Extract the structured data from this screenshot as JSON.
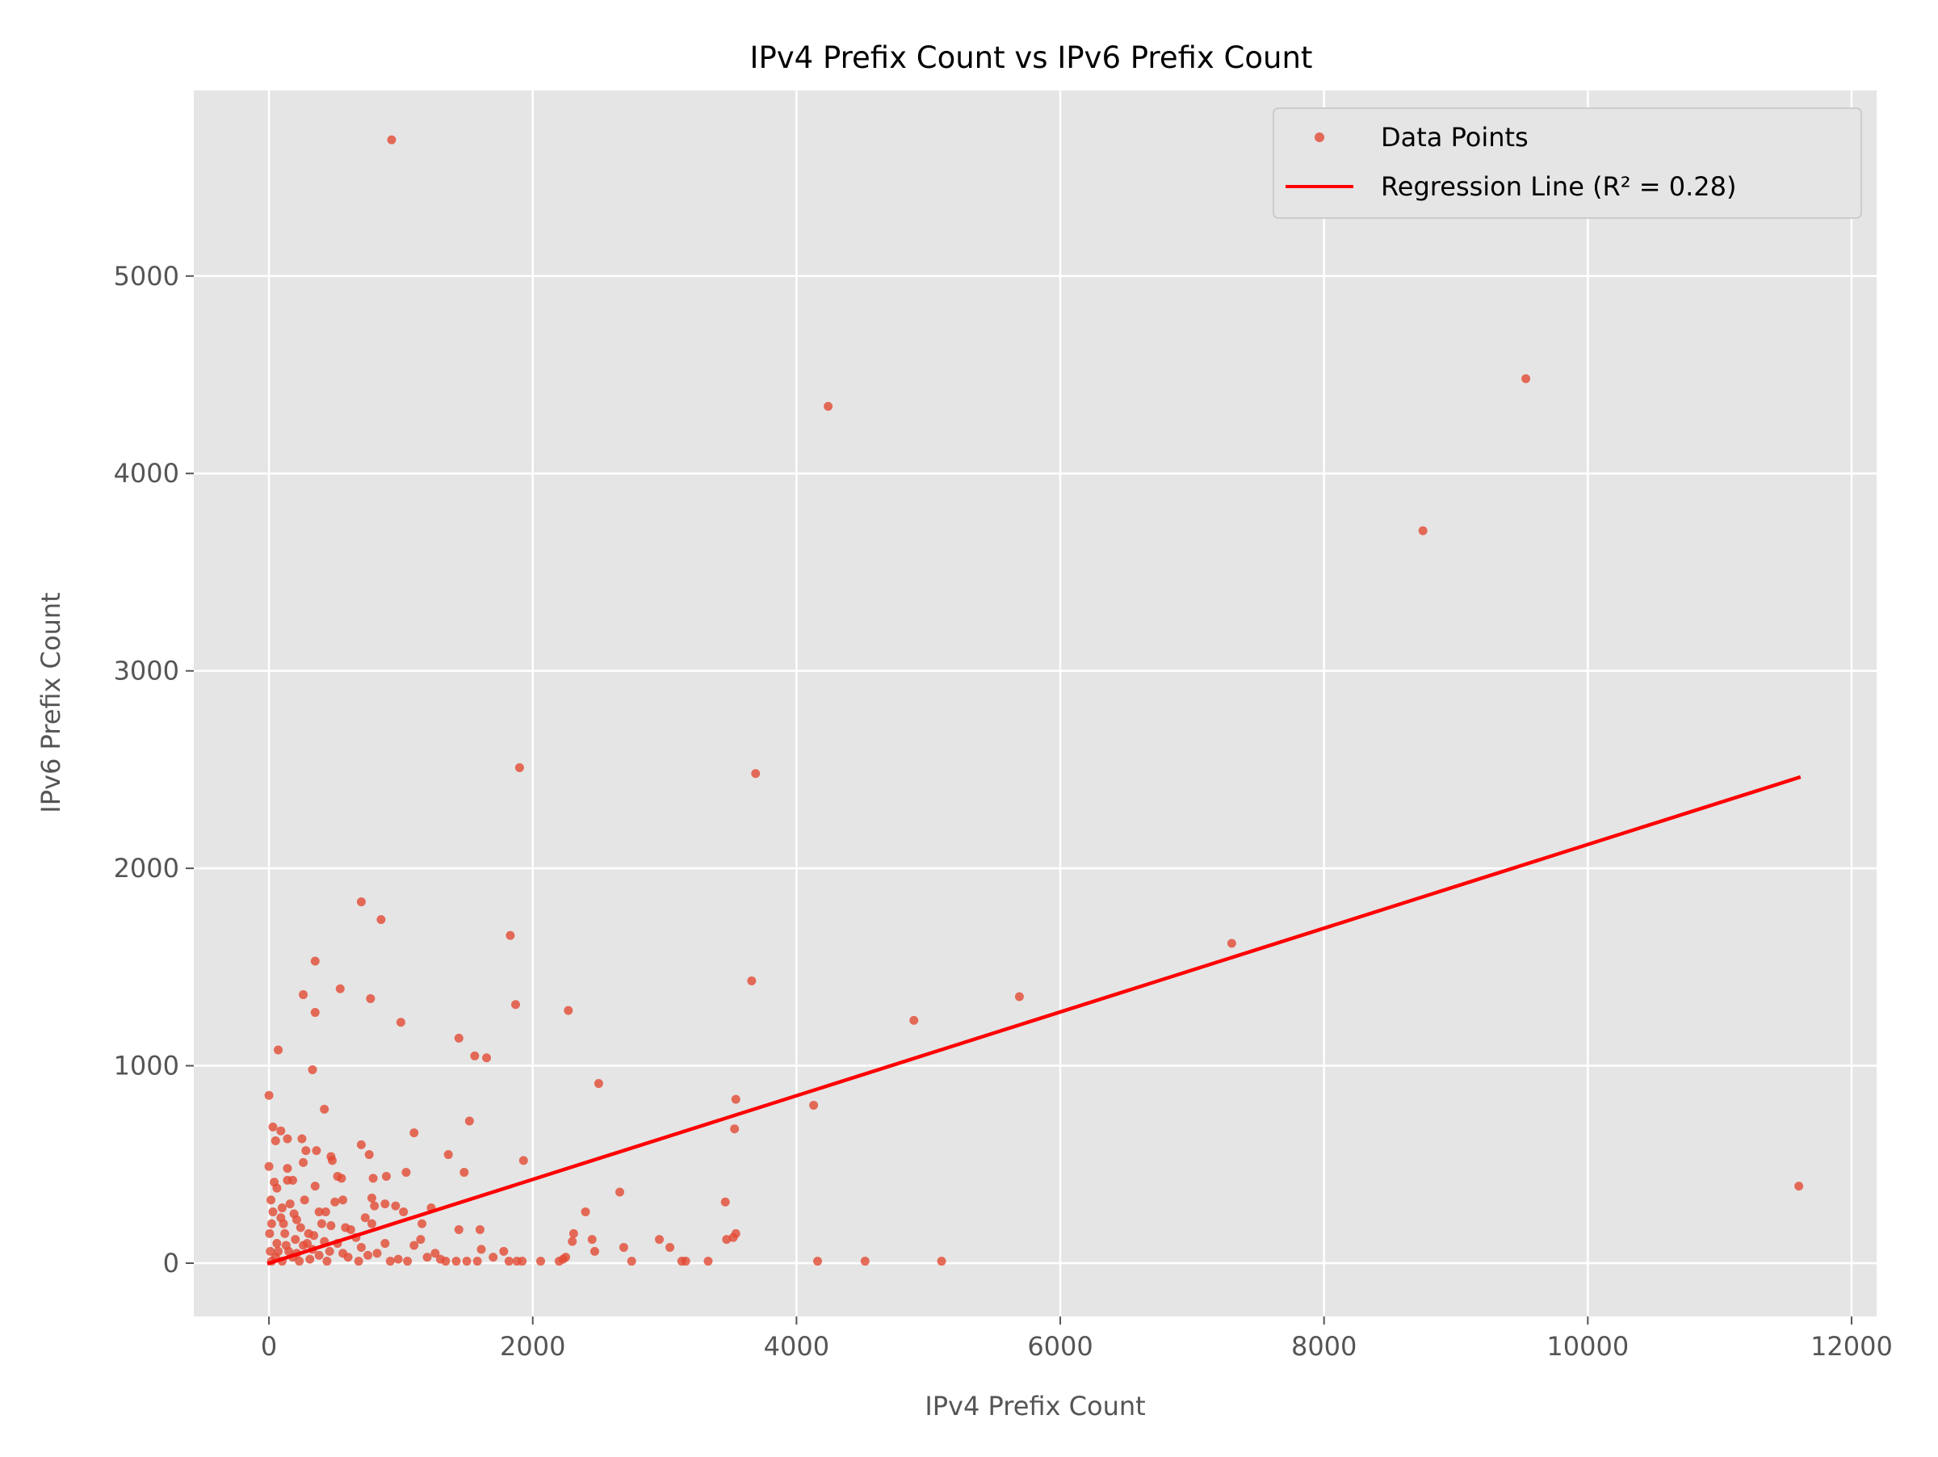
{
  "chart_data": {
    "type": "scatter",
    "title": "IPv4 Prefix Count vs IPv6 Prefix Count",
    "xlabel": "IPv4 Prefix Count",
    "ylabel": "IPv6 Prefix Count",
    "xlim": [
      -570,
      12190
    ],
    "ylim": [
      -270,
      5940
    ],
    "xticks": [
      0,
      2000,
      4000,
      6000,
      8000,
      10000,
      12000
    ],
    "yticks": [
      0,
      1000,
      2000,
      3000,
      4000,
      5000
    ],
    "grid": true,
    "legend": {
      "placement": "top-right",
      "entries": [
        "Data Points",
        "Regression Line (R² = 0.28)"
      ]
    },
    "colors": {
      "points": "#E24A33",
      "regression": "#FF0000",
      "plot_background": "#E5E5E5",
      "grid": "#FFFFFF"
    },
    "series": [
      {
        "name": "Data Points",
        "type": "scatter",
        "points": [
          [
            930,
            5690
          ],
          [
            4240,
            4340
          ],
          [
            9530,
            4480
          ],
          [
            8750,
            3710
          ],
          [
            1900,
            2510
          ],
          [
            3690,
            2480
          ],
          [
            7300,
            1620
          ],
          [
            5690,
            1350
          ],
          [
            4890,
            1230
          ],
          [
            4130,
            800
          ],
          [
            3660,
            1430
          ],
          [
            3540,
            830
          ],
          [
            3530,
            680
          ],
          [
            3460,
            310
          ],
          [
            3520,
            130
          ],
          [
            3540,
            150
          ],
          [
            3470,
            120
          ],
          [
            11600,
            390
          ],
          [
            2500,
            910
          ],
          [
            2270,
            1280
          ],
          [
            2660,
            360
          ],
          [
            2400,
            260
          ],
          [
            2310,
            150
          ],
          [
            2450,
            120
          ],
          [
            2300,
            110
          ],
          [
            2470,
            60
          ],
          [
            2690,
            80
          ],
          [
            2960,
            120
          ],
          [
            3040,
            80
          ],
          [
            3330,
            10
          ],
          [
            3130,
            10
          ],
          [
            3160,
            10
          ],
          [
            2750,
            10
          ],
          [
            2230,
            20
          ],
          [
            2200,
            10
          ],
          [
            2250,
            30
          ],
          [
            2060,
            10
          ],
          [
            4160,
            10
          ],
          [
            4520,
            10
          ],
          [
            5100,
            10
          ],
          [
            1830,
            1660
          ],
          [
            1870,
            1310
          ],
          [
            700,
            1830
          ],
          [
            850,
            1740
          ],
          [
            350,
            1530
          ],
          [
            540,
            1390
          ],
          [
            260,
            1360
          ],
          [
            770,
            1340
          ],
          [
            350,
            1270
          ],
          [
            1000,
            1220
          ],
          [
            70,
            1080
          ],
          [
            1440,
            1140
          ],
          [
            1560,
            1050
          ],
          [
            1650,
            1040
          ],
          [
            330,
            980
          ],
          [
            0,
            850
          ],
          [
            420,
            780
          ],
          [
            1520,
            720
          ],
          [
            30,
            690
          ],
          [
            90,
            670
          ],
          [
            1100,
            660
          ],
          [
            50,
            620
          ],
          [
            140,
            630
          ],
          [
            250,
            630
          ],
          [
            700,
            600
          ],
          [
            360,
            570
          ],
          [
            280,
            570
          ],
          [
            470,
            540
          ],
          [
            760,
            550
          ],
          [
            1360,
            550
          ],
          [
            1930,
            520
          ],
          [
            480,
            520
          ],
          [
            260,
            510
          ],
          [
            140,
            480
          ],
          [
            0,
            490
          ],
          [
            1480,
            460
          ],
          [
            1040,
            460
          ],
          [
            520,
            440
          ],
          [
            890,
            440
          ],
          [
            790,
            430
          ],
          [
            550,
            430
          ],
          [
            140,
            420
          ],
          [
            180,
            420
          ],
          [
            40,
            410
          ],
          [
            350,
            390
          ],
          [
            60,
            380
          ],
          [
            560,
            320
          ],
          [
            780,
            330
          ],
          [
            500,
            310
          ],
          [
            270,
            320
          ],
          [
            960,
            290
          ],
          [
            1020,
            260
          ],
          [
            1230,
            280
          ],
          [
            800,
            290
          ],
          [
            380,
            260
          ],
          [
            430,
            260
          ],
          [
            30,
            260
          ],
          [
            100,
            280
          ],
          [
            190,
            250
          ],
          [
            880,
            300
          ],
          [
            210,
            220
          ],
          [
            1160,
            200
          ],
          [
            780,
            200
          ],
          [
            730,
            230
          ],
          [
            580,
            180
          ],
          [
            470,
            190
          ],
          [
            1440,
            170
          ],
          [
            1600,
            170
          ],
          [
            20,
            200
          ],
          [
            120,
            150
          ],
          [
            300,
            150
          ],
          [
            660,
            130
          ],
          [
            1150,
            120
          ],
          [
            1100,
            90
          ],
          [
            880,
            100
          ],
          [
            520,
            100
          ],
          [
            1780,
            60
          ],
          [
            1610,
            70
          ],
          [
            1260,
            50
          ],
          [
            1340,
            10
          ],
          [
            1500,
            10
          ],
          [
            1580,
            10
          ],
          [
            1820,
            10
          ],
          [
            1880,
            10
          ],
          [
            1920,
            10
          ],
          [
            1050,
            10
          ],
          [
            920,
            10
          ],
          [
            680,
            10
          ],
          [
            440,
            10
          ],
          [
            230,
            10
          ],
          [
            100,
            10
          ],
          [
            20,
            10
          ],
          [
            150,
            60
          ],
          [
            260,
            90
          ],
          [
            380,
            40
          ],
          [
            600,
            30
          ],
          [
            820,
            50
          ],
          [
            980,
            20
          ],
          [
            1200,
            30
          ],
          [
            60,
            100
          ],
          [
            200,
            120
          ],
          [
            330,
            70
          ],
          [
            460,
            60
          ],
          [
            700,
            80
          ],
          [
            50,
            30
          ],
          [
            180,
            30
          ],
          [
            310,
            20
          ],
          [
            420,
            110
          ],
          [
            560,
            50
          ],
          [
            750,
            40
          ],
          [
            1700,
            30
          ],
          [
            1300,
            20
          ],
          [
            1420,
            10
          ],
          [
            90,
            230
          ],
          [
            160,
            300
          ],
          [
            240,
            180
          ],
          [
            340,
            140
          ],
          [
            400,
            200
          ],
          [
            620,
            170
          ],
          [
            110,
            200
          ],
          [
            70,
            60
          ],
          [
            130,
            90
          ],
          [
            210,
            50
          ],
          [
            290,
            100
          ],
          [
            10,
            60
          ],
          [
            5,
            150
          ],
          [
            15,
            320
          ]
        ]
      },
      {
        "name": "Regression Line (R² = 0.28)",
        "type": "line",
        "x": [
          0,
          11600
        ],
        "y": [
          0,
          2460
        ]
      }
    ]
  }
}
